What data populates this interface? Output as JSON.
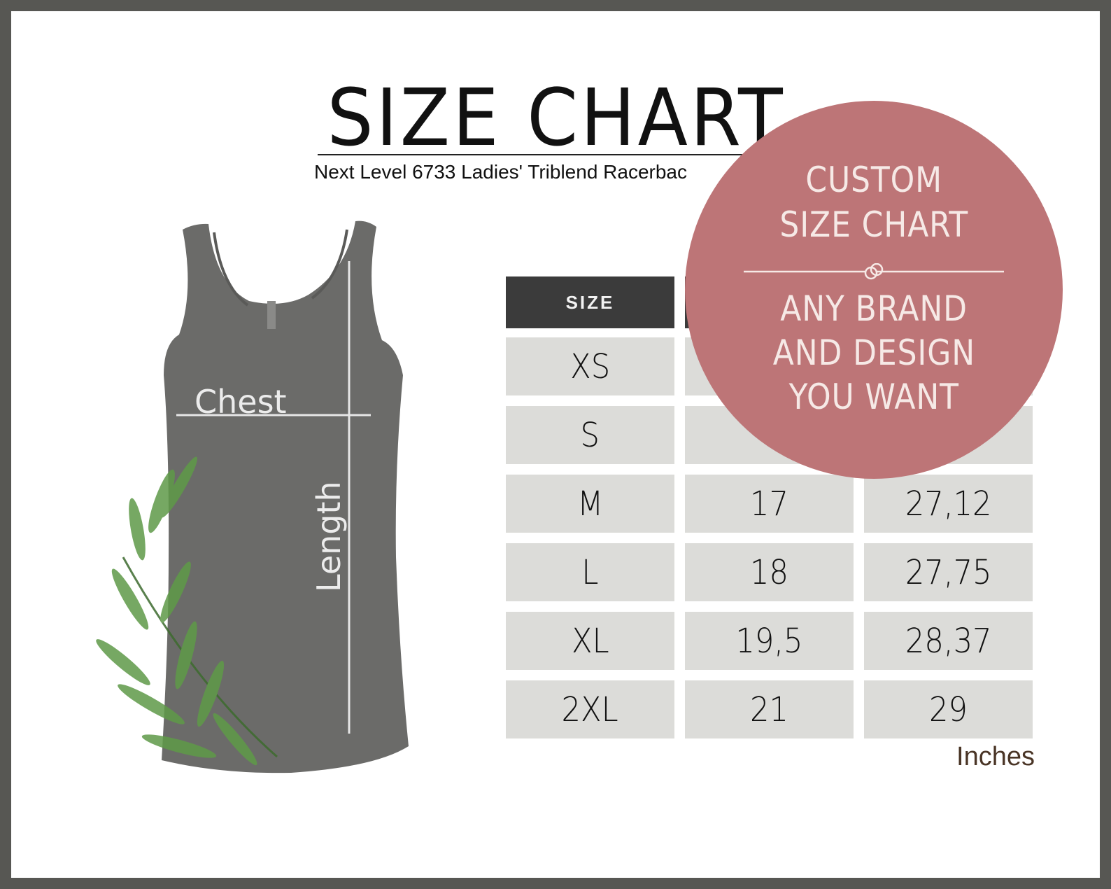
{
  "title": "SIZE CHART",
  "subtitle": "Next Level 6733 Ladies' Triblend Racerbac",
  "garment": {
    "chest_label": "Chest",
    "length_label": "Length",
    "color": "#6b6b69"
  },
  "table": {
    "headers": [
      "SIZE",
      "",
      ""
    ],
    "rows": [
      {
        "size": "XS",
        "chest": "",
        "length": ""
      },
      {
        "size": "S",
        "chest": "",
        "length": ""
      },
      {
        "size": "M",
        "chest": "17",
        "length": "27,12"
      },
      {
        "size": "L",
        "chest": "18",
        "length": "27,75"
      },
      {
        "size": "XL",
        "chest": "19,5",
        "length": "28,37"
      },
      {
        "size": "2XL",
        "chest": "21",
        "length": "29"
      }
    ],
    "unit": "Inches"
  },
  "badge": {
    "lines": [
      "CUSTOM",
      "SIZE CHART",
      "ANY BRAND",
      "AND DESIGN",
      "YOU WANT"
    ],
    "color": "#bd7577"
  },
  "colors": {
    "frame": "#575753",
    "header_bg": "#3b3b3b",
    "cell_bg": "#dcdcd9"
  }
}
